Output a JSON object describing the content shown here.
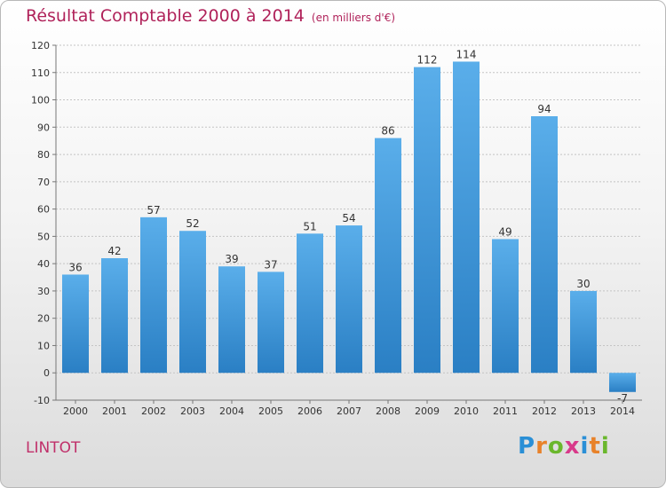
{
  "header": {
    "title": "Résultat Comptable 2000 à 2014",
    "subtitle": "(en milliers d'€)"
  },
  "footer": {
    "commune": "LINTOT",
    "logo_letters": [
      "P",
      "r",
      "o",
      "x",
      "i",
      "t",
      "i"
    ],
    "logo_colors": [
      "#2a8fd6",
      "#e8822a",
      "#6ab72c",
      "#d83a8a",
      "#2a8fd6",
      "#e8822a",
      "#6ab72c"
    ]
  },
  "chart_data": {
    "type": "bar",
    "title": "Résultat Comptable 2000 à 2014",
    "xlabel": "",
    "ylabel": "",
    "categories": [
      "2000",
      "2001",
      "2002",
      "2003",
      "2004",
      "2005",
      "2006",
      "2007",
      "2008",
      "2009",
      "2010",
      "2011",
      "2012",
      "2013",
      "2014"
    ],
    "values": [
      36,
      42,
      57,
      52,
      39,
      37,
      51,
      54,
      86,
      112,
      114,
      49,
      94,
      30,
      -7
    ],
    "ylim": [
      -10,
      120
    ],
    "yticks": [
      -10,
      0,
      10,
      20,
      30,
      40,
      50,
      60,
      70,
      80,
      90,
      100,
      110,
      120
    ],
    "grid": true,
    "bar_color_top": "#5aaeea",
    "bar_color_bottom": "#2a7fc4"
  }
}
